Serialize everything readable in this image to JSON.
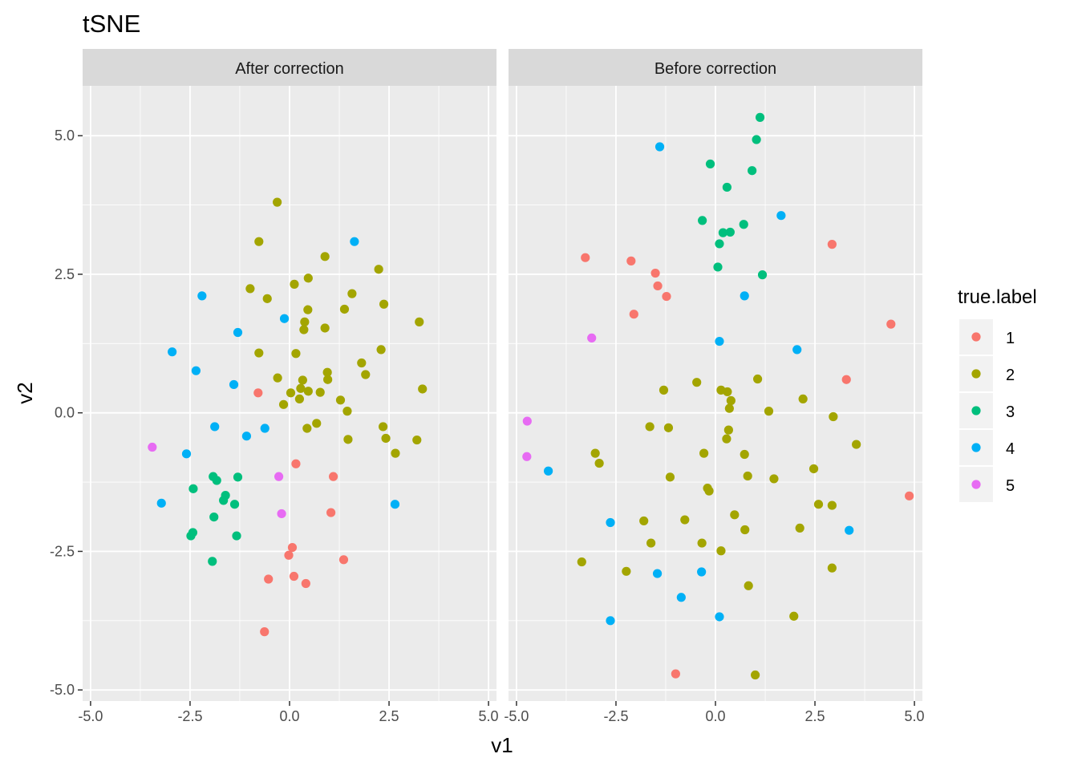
{
  "chart_data": {
    "type": "scatter",
    "title": "tSNE",
    "xlabel": "v1",
    "ylabel": "v2",
    "xlim": [
      -5.2,
      5.2
    ],
    "ylim": [
      -5.2,
      5.9
    ],
    "x_ticks": [
      -5.0,
      -2.5,
      0.0,
      2.5,
      5.0
    ],
    "x_tick_labels": [
      "-5.0",
      "-2.5",
      "0.0",
      "2.5",
      "5.0"
    ],
    "y_ticks": [
      -5.0,
      -2.5,
      0.0,
      2.5,
      5.0
    ],
    "y_tick_labels": [
      "-5.0",
      "-2.5",
      "0.0",
      "2.5",
      "5.0"
    ],
    "grid": true,
    "legend": {
      "title": "true.label",
      "position": "right",
      "entries": [
        {
          "label": "1",
          "color": "#F8766D"
        },
        {
          "label": "2",
          "color": "#A3A500"
        },
        {
          "label": "3",
          "color": "#00BF7D"
        },
        {
          "label": "4",
          "color": "#00B0F6"
        },
        {
          "label": "5",
          "color": "#E76BF3"
        }
      ]
    },
    "panels": [
      {
        "name": "After correction",
        "points": [
          {
            "x": -0.79,
            "y": 0.36,
            "label": "1"
          },
          {
            "x": 0.16,
            "y": -0.92,
            "label": "1"
          },
          {
            "x": 1.1,
            "y": -1.15,
            "label": "1"
          },
          {
            "x": 1.04,
            "y": -1.8,
            "label": "1"
          },
          {
            "x": 0.07,
            "y": -2.43,
            "label": "1"
          },
          {
            "x": -0.02,
            "y": -2.57,
            "label": "1"
          },
          {
            "x": 1.36,
            "y": -2.65,
            "label": "1"
          },
          {
            "x": -0.53,
            "y": -3.0,
            "label": "1"
          },
          {
            "x": 0.11,
            "y": -2.95,
            "label": "1"
          },
          {
            "x": 0.41,
            "y": -3.08,
            "label": "1"
          },
          {
            "x": -0.63,
            "y": -3.95,
            "label": "1"
          },
          {
            "x": -0.31,
            "y": 3.8,
            "label": "2"
          },
          {
            "x": -0.77,
            "y": 3.09,
            "label": "2"
          },
          {
            "x": 0.89,
            "y": 2.82,
            "label": "2"
          },
          {
            "x": 2.24,
            "y": 2.59,
            "label": "2"
          },
          {
            "x": 0.47,
            "y": 2.43,
            "label": "2"
          },
          {
            "x": 0.12,
            "y": 2.32,
            "label": "2"
          },
          {
            "x": -0.99,
            "y": 2.24,
            "label": "2"
          },
          {
            "x": 1.57,
            "y": 2.15,
            "label": "2"
          },
          {
            "x": -0.56,
            "y": 2.06,
            "label": "2"
          },
          {
            "x": 2.37,
            "y": 1.96,
            "label": "2"
          },
          {
            "x": 1.38,
            "y": 1.87,
            "label": "2"
          },
          {
            "x": 0.46,
            "y": 1.86,
            "label": "2"
          },
          {
            "x": 0.38,
            "y": 1.64,
            "label": "2"
          },
          {
            "x": 3.26,
            "y": 1.64,
            "label": "2"
          },
          {
            "x": 0.89,
            "y": 1.53,
            "label": "2"
          },
          {
            "x": 0.36,
            "y": 1.5,
            "label": "2"
          },
          {
            "x": 2.3,
            "y": 1.14,
            "label": "2"
          },
          {
            "x": -0.77,
            "y": 1.08,
            "label": "2"
          },
          {
            "x": 0.16,
            "y": 1.07,
            "label": "2"
          },
          {
            "x": 1.81,
            "y": 0.9,
            "label": "2"
          },
          {
            "x": 0.95,
            "y": 0.73,
            "label": "2"
          },
          {
            "x": 1.91,
            "y": 0.69,
            "label": "2"
          },
          {
            "x": -0.3,
            "y": 0.63,
            "label": "2"
          },
          {
            "x": 0.33,
            "y": 0.59,
            "label": "2"
          },
          {
            "x": 0.96,
            "y": 0.6,
            "label": "2"
          },
          {
            "x": 3.34,
            "y": 0.43,
            "label": "2"
          },
          {
            "x": 0.28,
            "y": 0.44,
            "label": "2"
          },
          {
            "x": 0.47,
            "y": 0.39,
            "label": "2"
          },
          {
            "x": 0.77,
            "y": 0.37,
            "label": "2"
          },
          {
            "x": 0.03,
            "y": 0.36,
            "label": "2"
          },
          {
            "x": 0.25,
            "y": 0.25,
            "label": "2"
          },
          {
            "x": 1.28,
            "y": 0.23,
            "label": "2"
          },
          {
            "x": -0.15,
            "y": 0.15,
            "label": "2"
          },
          {
            "x": 1.45,
            "y": 0.03,
            "label": "2"
          },
          {
            "x": 0.68,
            "y": -0.19,
            "label": "2"
          },
          {
            "x": 2.35,
            "y": -0.25,
            "label": "2"
          },
          {
            "x": 0.44,
            "y": -0.28,
            "label": "2"
          },
          {
            "x": 1.47,
            "y": -0.48,
            "label": "2"
          },
          {
            "x": 2.42,
            "y": -0.46,
            "label": "2"
          },
          {
            "x": 3.2,
            "y": -0.49,
            "label": "2"
          },
          {
            "x": 2.66,
            "y": -0.73,
            "label": "2"
          },
          {
            "x": -1.83,
            "y": -1.22,
            "label": "3"
          },
          {
            "x": -1.92,
            "y": -1.15,
            "label": "3"
          },
          {
            "x": -1.3,
            "y": -1.16,
            "label": "3"
          },
          {
            "x": -2.42,
            "y": -1.37,
            "label": "3"
          },
          {
            "x": -1.61,
            "y": -1.49,
            "label": "3"
          },
          {
            "x": -1.66,
            "y": -1.58,
            "label": "3"
          },
          {
            "x": -1.38,
            "y": -1.65,
            "label": "3"
          },
          {
            "x": -1.9,
            "y": -1.88,
            "label": "3"
          },
          {
            "x": -2.43,
            "y": -2.16,
            "label": "3"
          },
          {
            "x": -2.48,
            "y": -2.22,
            "label": "3"
          },
          {
            "x": -1.33,
            "y": -2.22,
            "label": "3"
          },
          {
            "x": -1.94,
            "y": -2.68,
            "label": "3"
          },
          {
            "x": 1.63,
            "y": 3.09,
            "label": "4"
          },
          {
            "x": -2.2,
            "y": 2.11,
            "label": "4"
          },
          {
            "x": -0.13,
            "y": 1.7,
            "label": "4"
          },
          {
            "x": -1.3,
            "y": 1.45,
            "label": "4"
          },
          {
            "x": -2.95,
            "y": 1.1,
            "label": "4"
          },
          {
            "x": -2.35,
            "y": 0.76,
            "label": "4"
          },
          {
            "x": -1.4,
            "y": 0.51,
            "label": "4"
          },
          {
            "x": -1.88,
            "y": -0.25,
            "label": "4"
          },
          {
            "x": -0.62,
            "y": -0.28,
            "label": "4"
          },
          {
            "x": -1.08,
            "y": -0.42,
            "label": "4"
          },
          {
            "x": -2.59,
            "y": -0.74,
            "label": "4"
          },
          {
            "x": -3.22,
            "y": -1.63,
            "label": "4"
          },
          {
            "x": 2.65,
            "y": -1.65,
            "label": "4"
          },
          {
            "x": -3.45,
            "y": -0.62,
            "label": "5"
          },
          {
            "x": -0.27,
            "y": -1.15,
            "label": "5"
          },
          {
            "x": -0.2,
            "y": -1.82,
            "label": "5"
          }
        ]
      },
      {
        "name": "Before correction",
        "points": [
          {
            "x": 2.93,
            "y": 3.04,
            "label": "1"
          },
          {
            "x": -3.27,
            "y": 2.8,
            "label": "1"
          },
          {
            "x": -2.12,
            "y": 2.74,
            "label": "1"
          },
          {
            "x": -1.51,
            "y": 2.52,
            "label": "1"
          },
          {
            "x": -1.45,
            "y": 2.29,
            "label": "1"
          },
          {
            "x": -1.23,
            "y": 2.1,
            "label": "1"
          },
          {
            "x": -2.05,
            "y": 1.78,
            "label": "1"
          },
          {
            "x": 4.41,
            "y": 1.6,
            "label": "1"
          },
          {
            "x": 3.29,
            "y": 0.6,
            "label": "1"
          },
          {
            "x": 4.87,
            "y": -1.5,
            "label": "1"
          },
          {
            "x": -1.0,
            "y": -4.71,
            "label": "1"
          },
          {
            "x": 1.06,
            "y": 0.61,
            "label": "2"
          },
          {
            "x": -0.47,
            "y": 0.55,
            "label": "2"
          },
          {
            "x": -1.3,
            "y": 0.41,
            "label": "2"
          },
          {
            "x": 0.14,
            "y": 0.41,
            "label": "2"
          },
          {
            "x": 0.3,
            "y": 0.38,
            "label": "2"
          },
          {
            "x": 2.2,
            "y": 0.25,
            "label": "2"
          },
          {
            "x": 0.39,
            "y": 0.22,
            "label": "2"
          },
          {
            "x": 0.35,
            "y": 0.08,
            "label": "2"
          },
          {
            "x": 1.34,
            "y": 0.03,
            "label": "2"
          },
          {
            "x": 2.96,
            "y": -0.07,
            "label": "2"
          },
          {
            "x": -1.65,
            "y": -0.25,
            "label": "2"
          },
          {
            "x": -1.18,
            "y": -0.27,
            "label": "2"
          },
          {
            "x": 0.33,
            "y": -0.31,
            "label": "2"
          },
          {
            "x": 0.28,
            "y": -0.47,
            "label": "2"
          },
          {
            "x": 3.54,
            "y": -0.57,
            "label": "2"
          },
          {
            "x": -3.02,
            "y": -0.73,
            "label": "2"
          },
          {
            "x": -0.29,
            "y": -0.73,
            "label": "2"
          },
          {
            "x": 0.73,
            "y": -0.75,
            "label": "2"
          },
          {
            "x": -2.92,
            "y": -0.91,
            "label": "2"
          },
          {
            "x": 2.47,
            "y": -1.01,
            "label": "2"
          },
          {
            "x": 0.81,
            "y": -1.14,
            "label": "2"
          },
          {
            "x": -1.14,
            "y": -1.16,
            "label": "2"
          },
          {
            "x": 1.47,
            "y": -1.19,
            "label": "2"
          },
          {
            "x": -0.2,
            "y": -1.36,
            "label": "2"
          },
          {
            "x": -0.16,
            "y": -1.41,
            "label": "2"
          },
          {
            "x": 2.59,
            "y": -1.65,
            "label": "2"
          },
          {
            "x": 2.93,
            "y": -1.67,
            "label": "2"
          },
          {
            "x": 0.48,
            "y": -1.84,
            "label": "2"
          },
          {
            "x": -1.8,
            "y": -1.95,
            "label": "2"
          },
          {
            "x": -0.77,
            "y": -1.93,
            "label": "2"
          },
          {
            "x": 2.12,
            "y": -2.08,
            "label": "2"
          },
          {
            "x": 0.74,
            "y": -2.11,
            "label": "2"
          },
          {
            "x": -1.62,
            "y": -2.35,
            "label": "2"
          },
          {
            "x": -0.34,
            "y": -2.35,
            "label": "2"
          },
          {
            "x": 0.14,
            "y": -2.49,
            "label": "2"
          },
          {
            "x": -3.36,
            "y": -2.69,
            "label": "2"
          },
          {
            "x": 2.93,
            "y": -2.8,
            "label": "2"
          },
          {
            "x": -2.24,
            "y": -2.86,
            "label": "2"
          },
          {
            "x": 0.83,
            "y": -3.12,
            "label": "2"
          },
          {
            "x": 1.97,
            "y": -3.67,
            "label": "2"
          },
          {
            "x": 1.0,
            "y": -4.73,
            "label": "2"
          },
          {
            "x": 1.12,
            "y": 5.33,
            "label": "3"
          },
          {
            "x": 1.03,
            "y": 4.93,
            "label": "3"
          },
          {
            "x": -0.13,
            "y": 4.49,
            "label": "3"
          },
          {
            "x": 0.92,
            "y": 4.37,
            "label": "3"
          },
          {
            "x": 0.29,
            "y": 4.07,
            "label": "3"
          },
          {
            "x": -0.33,
            "y": 3.47,
            "label": "3"
          },
          {
            "x": 0.71,
            "y": 3.4,
            "label": "3"
          },
          {
            "x": 0.37,
            "y": 3.26,
            "label": "3"
          },
          {
            "x": 0.19,
            "y": 3.25,
            "label": "3"
          },
          {
            "x": 0.1,
            "y": 3.05,
            "label": "3"
          },
          {
            "x": 0.06,
            "y": 2.63,
            "label": "3"
          },
          {
            "x": 1.18,
            "y": 2.49,
            "label": "3"
          },
          {
            "x": -1.4,
            "y": 4.8,
            "label": "4"
          },
          {
            "x": 1.65,
            "y": 3.56,
            "label": "4"
          },
          {
            "x": 0.73,
            "y": 2.11,
            "label": "4"
          },
          {
            "x": 0.1,
            "y": 1.29,
            "label": "4"
          },
          {
            "x": 2.05,
            "y": 1.14,
            "label": "4"
          },
          {
            "x": -4.2,
            "y": -1.05,
            "label": "4"
          },
          {
            "x": -2.64,
            "y": -1.98,
            "label": "4"
          },
          {
            "x": 3.36,
            "y": -2.12,
            "label": "4"
          },
          {
            "x": -0.35,
            "y": -2.87,
            "label": "4"
          },
          {
            "x": -1.46,
            "y": -2.9,
            "label": "4"
          },
          {
            "x": -0.86,
            "y": -3.33,
            "label": "4"
          },
          {
            "x": 0.1,
            "y": -3.68,
            "label": "4"
          },
          {
            "x": -2.64,
            "y": -3.75,
            "label": "4"
          },
          {
            "x": -3.11,
            "y": 1.35,
            "label": "5"
          },
          {
            "x": -4.73,
            "y": -0.15,
            "label": "5"
          },
          {
            "x": -4.74,
            "y": -0.79,
            "label": "5"
          }
        ]
      }
    ]
  }
}
